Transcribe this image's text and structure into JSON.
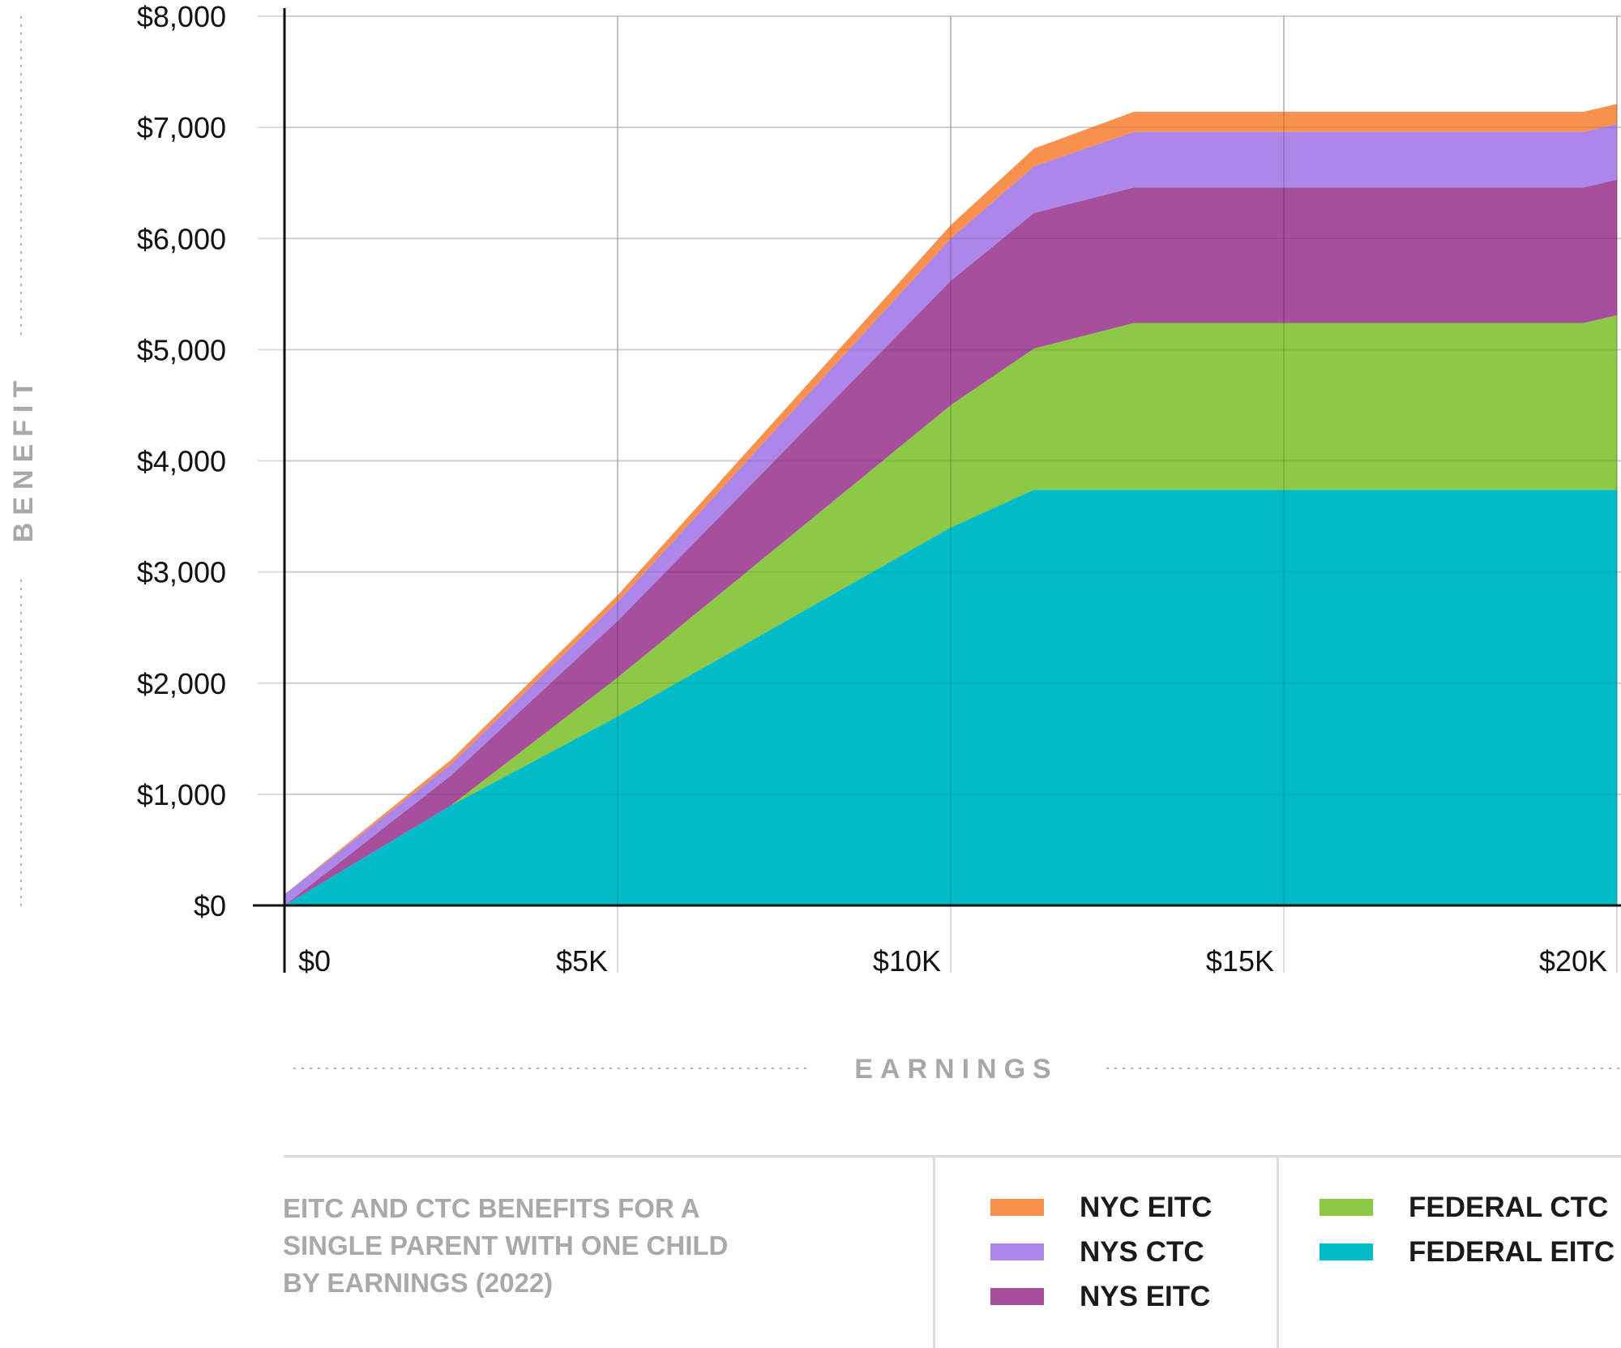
{
  "chart_data": {
    "type": "area",
    "stacked": true,
    "title": "EITC and CTC benefits for a single parent with one child by earnings (2022)",
    "xlabel": "EARNINGS",
    "ylabel": "BENEFIT",
    "xlim": [
      0,
      20000
    ],
    "ylim": [
      0,
      8000
    ],
    "grid": true,
    "x_ticks": [
      {
        "value": 0,
        "label": "$0"
      },
      {
        "value": 5000,
        "label": "$5K"
      },
      {
        "value": 10000,
        "label": "$10K"
      },
      {
        "value": 15000,
        "label": "$15K"
      },
      {
        "value": 20000,
        "label": "$20K"
      }
    ],
    "y_ticks": [
      {
        "value": 0,
        "label": "$0"
      },
      {
        "value": 1000,
        "label": "$1,000"
      },
      {
        "value": 2000,
        "label": "$2,000"
      },
      {
        "value": 3000,
        "label": "$3,000"
      },
      {
        "value": 4000,
        "label": "$4,000"
      },
      {
        "value": 5000,
        "label": "$5,000"
      },
      {
        "value": 6000,
        "label": "$6,000"
      },
      {
        "value": 7000,
        "label": "$7,000"
      },
      {
        "value": 8000,
        "label": "$8,000"
      }
    ],
    "x": [
      0,
      2500,
      5000,
      10000,
      11250,
      12750,
      19500,
      20000
    ],
    "series": [
      {
        "name": "FEDERAL EITC",
        "color": "#00bcc8",
        "values": [
          0,
          900,
          1700,
          3400,
          3740,
          3740,
          3740,
          3740
        ]
      },
      {
        "name": "FEDERAL CTC",
        "color": "#8dc846",
        "values": [
          0,
          0,
          350,
          1100,
          1270,
          1500,
          1500,
          1570
        ]
      },
      {
        "name": "NYS EITC",
        "color": "#a64f9c",
        "values": [
          0,
          270,
          510,
          1120,
          1220,
          1220,
          1220,
          1220
        ]
      },
      {
        "name": "NYS CTC",
        "color": "#ad86ea",
        "values": [
          100,
          100,
          170,
          380,
          420,
          500,
          500,
          500
        ]
      },
      {
        "name": "NYC EITC",
        "color": "#f9914e",
        "values": [
          0,
          40,
          60,
          120,
          160,
          180,
          180,
          180
        ]
      }
    ],
    "legend": [
      [
        "NYC EITC",
        "NYS CTC",
        "NYS EITC"
      ],
      [
        "FEDERAL CTC",
        "FEDERAL EITC"
      ]
    ],
    "legend_placement": "bottom"
  },
  "caption": "EITC AND CTC BENEFITS FOR A SINGLE PARENT WITH ONE CHILD BY EARNINGS (2022)"
}
